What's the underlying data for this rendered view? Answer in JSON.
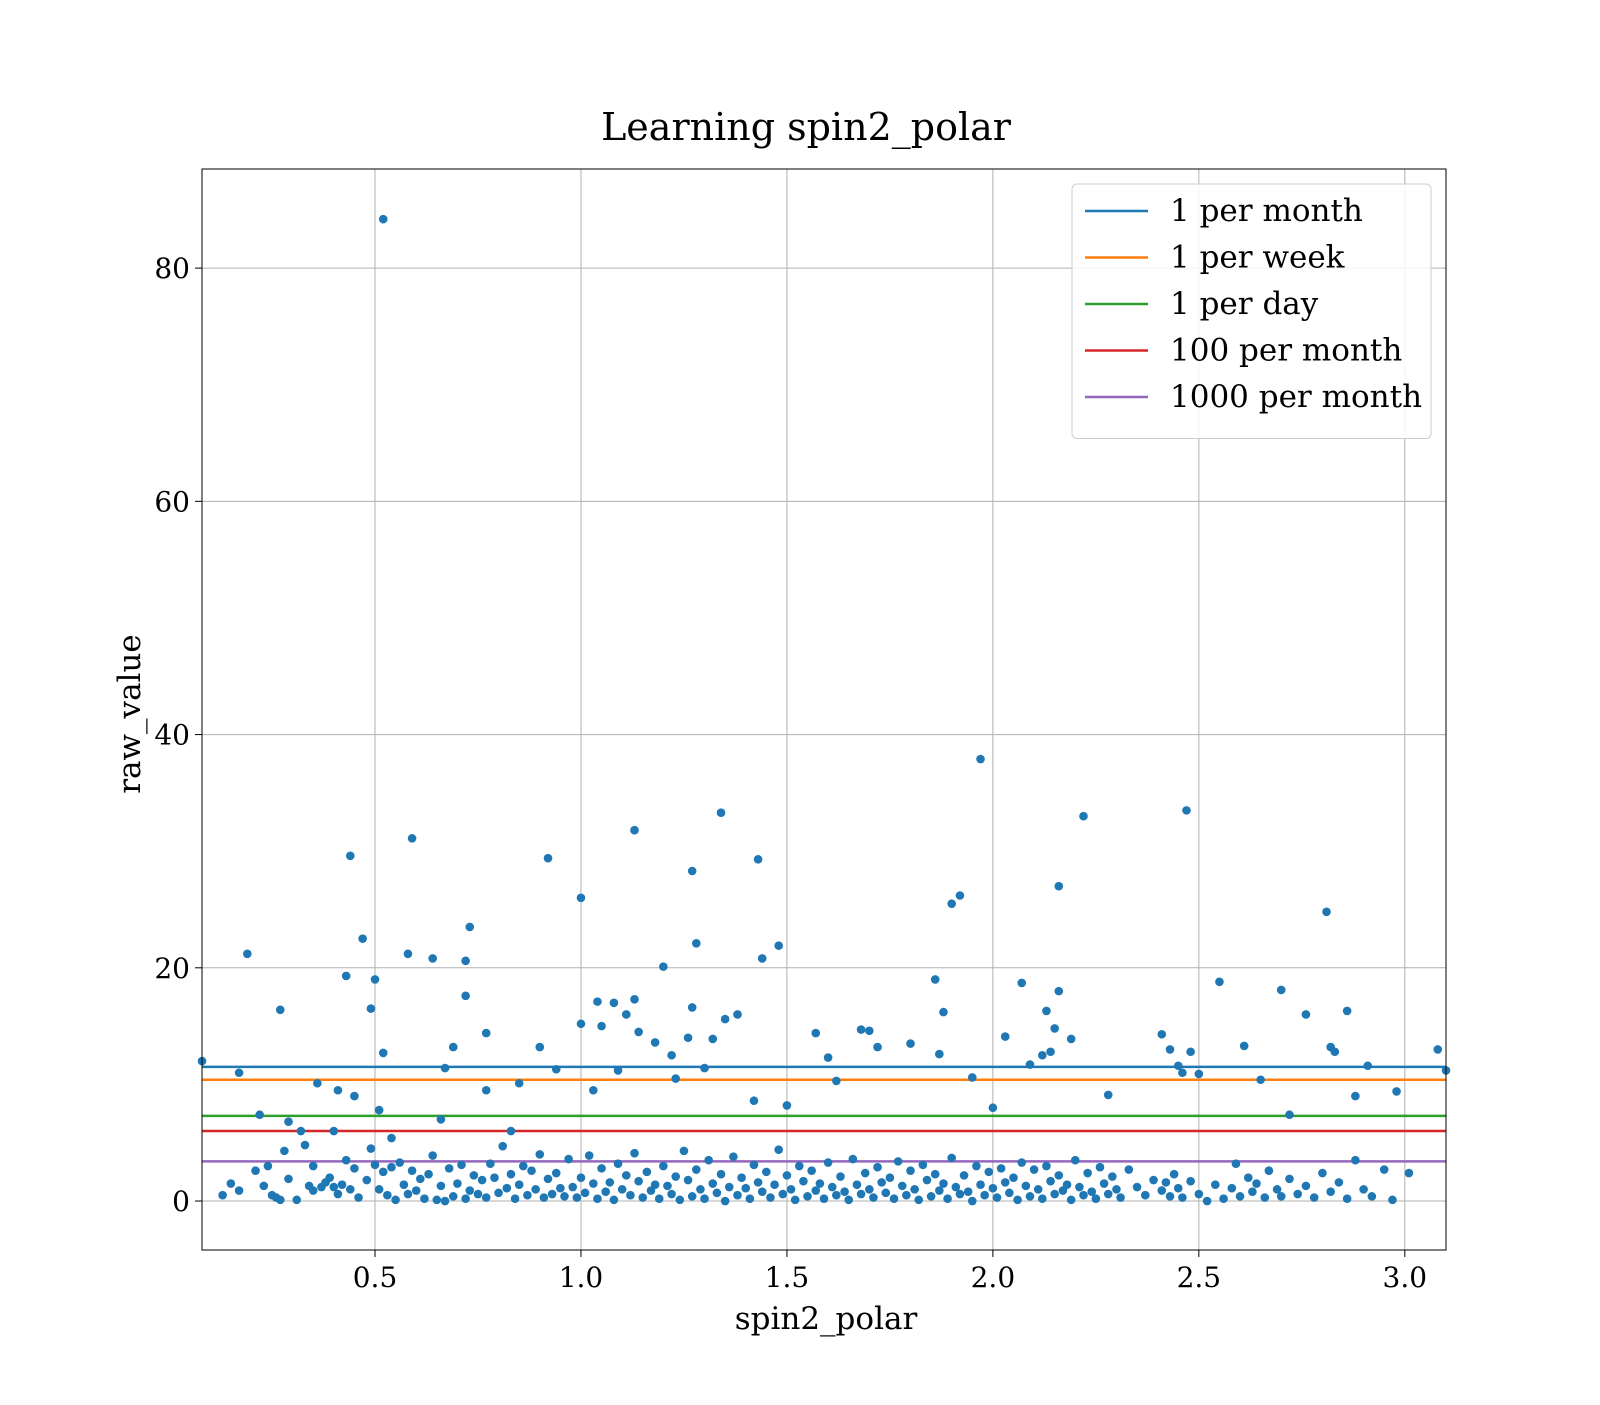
{
  "chart_data": {
    "type": "scatter",
    "title": "Learning spin2_polar",
    "xlabel": "spin2_polar",
    "ylabel": "raw_value",
    "xlim": [
      0.08,
      3.1
    ],
    "ylim": [
      -4.2,
      88.5
    ],
    "xticks": [
      0.5,
      1.0,
      1.5,
      2.0,
      2.5,
      3.0
    ],
    "xtick_labels": [
      "0.5",
      "1.0",
      "1.5",
      "2.0",
      "2.5",
      "3.0"
    ],
    "yticks": [
      0,
      20,
      40,
      60,
      80
    ],
    "ytick_labels": [
      "0",
      "20",
      "40",
      "60",
      "80"
    ],
    "grid": true,
    "legend_position": "top-right",
    "point_color": "#1f77b4",
    "reference_lines": [
      {
        "name": "1 per month",
        "y": 11.5,
        "color": "#1f77b4"
      },
      {
        "name": "1 per week",
        "y": 10.4,
        "color": "#ff7f0e"
      },
      {
        "name": "1 per day",
        "y": 7.3,
        "color": "#2ca02c"
      },
      {
        "name": "100 per month",
        "y": 6.0,
        "color": "#d62728"
      },
      {
        "name": "1000 per month",
        "y": 3.4,
        "color": "#9467bd"
      }
    ],
    "points": [
      [
        0.08,
        12.0
      ],
      [
        0.15,
        1.5
      ],
      [
        0.17,
        11.0
      ],
      [
        0.19,
        21.2
      ],
      [
        0.22,
        7.4
      ],
      [
        0.24,
        3.0
      ],
      [
        0.27,
        16.4
      ],
      [
        0.28,
        4.3
      ],
      [
        0.29,
        6.8
      ],
      [
        0.32,
        6.0
      ],
      [
        0.36,
        10.1
      ],
      [
        0.4,
        6.0
      ],
      [
        0.41,
        9.5
      ],
      [
        0.43,
        19.3
      ],
      [
        0.44,
        29.6
      ],
      [
        0.45,
        9.0
      ],
      [
        0.47,
        22.5
      ],
      [
        0.49,
        4.5
      ],
      [
        0.49,
        16.5
      ],
      [
        0.5,
        19.0
      ],
      [
        0.51,
        7.8
      ],
      [
        0.52,
        12.7
      ],
      [
        0.52,
        84.2
      ],
      [
        0.54,
        5.4
      ],
      [
        0.58,
        21.2
      ],
      [
        0.59,
        31.1
      ],
      [
        0.64,
        20.8
      ],
      [
        0.66,
        7.0
      ],
      [
        0.67,
        11.4
      ],
      [
        0.69,
        13.2
      ],
      [
        0.72,
        20.6
      ],
      [
        0.72,
        17.6
      ],
      [
        0.73,
        23.5
      ],
      [
        0.77,
        14.4
      ],
      [
        0.77,
        9.5
      ],
      [
        0.83,
        6.0
      ],
      [
        0.85,
        10.1
      ],
      [
        0.9,
        13.2
      ],
      [
        0.92,
        29.4
      ],
      [
        0.94,
        11.3
      ],
      [
        1.0,
        26.0
      ],
      [
        1.0,
        15.2
      ],
      [
        1.03,
        9.5
      ],
      [
        1.04,
        17.1
      ],
      [
        1.05,
        15.0
      ],
      [
        1.08,
        17.0
      ],
      [
        1.09,
        11.2
      ],
      [
        1.11,
        16.0
      ],
      [
        1.13,
        31.8
      ],
      [
        1.13,
        17.3
      ],
      [
        1.14,
        14.5
      ],
      [
        1.18,
        13.6
      ],
      [
        1.2,
        20.1
      ],
      [
        1.22,
        12.5
      ],
      [
        1.23,
        10.5
      ],
      [
        1.26,
        14.0
      ],
      [
        1.27,
        16.6
      ],
      [
        1.27,
        28.3
      ],
      [
        1.28,
        22.1
      ],
      [
        1.3,
        11.4
      ],
      [
        1.32,
        13.9
      ],
      [
        1.34,
        33.3
      ],
      [
        1.35,
        15.6
      ],
      [
        1.38,
        16.0
      ],
      [
        1.42,
        8.6
      ],
      [
        1.43,
        29.3
      ],
      [
        1.44,
        20.8
      ],
      [
        1.48,
        21.9
      ],
      [
        1.5,
        8.2
      ],
      [
        1.57,
        14.4
      ],
      [
        1.6,
        12.3
      ],
      [
        1.62,
        10.3
      ],
      [
        1.68,
        14.7
      ],
      [
        1.7,
        14.6
      ],
      [
        1.72,
        13.2
      ],
      [
        1.8,
        13.5
      ],
      [
        1.86,
        19.0
      ],
      [
        1.87,
        12.6
      ],
      [
        1.88,
        16.2
      ],
      [
        1.9,
        25.5
      ],
      [
        1.92,
        26.2
      ],
      [
        1.95,
        10.6
      ],
      [
        1.97,
        37.9
      ],
      [
        2.0,
        8.0
      ],
      [
        2.03,
        14.1
      ],
      [
        2.07,
        18.7
      ],
      [
        2.09,
        11.7
      ],
      [
        2.12,
        12.5
      ],
      [
        2.13,
        16.3
      ],
      [
        2.14,
        12.8
      ],
      [
        2.15,
        14.8
      ],
      [
        2.16,
        27.0
      ],
      [
        2.16,
        18.0
      ],
      [
        2.19,
        13.9
      ],
      [
        2.22,
        33.0
      ],
      [
        2.28,
        9.1
      ],
      [
        2.41,
        14.3
      ],
      [
        2.43,
        13.0
      ],
      [
        2.45,
        11.6
      ],
      [
        2.46,
        11.0
      ],
      [
        2.47,
        33.5
      ],
      [
        2.48,
        12.8
      ],
      [
        2.5,
        10.9
      ],
      [
        2.55,
        18.8
      ],
      [
        2.61,
        13.3
      ],
      [
        2.65,
        10.4
      ],
      [
        2.7,
        18.1
      ],
      [
        2.72,
        7.4
      ],
      [
        2.76,
        16.0
      ],
      [
        2.81,
        24.8
      ],
      [
        2.82,
        13.2
      ],
      [
        2.83,
        12.8
      ],
      [
        2.86,
        16.3
      ],
      [
        2.88,
        9.0
      ],
      [
        2.91,
        11.6
      ],
      [
        2.98,
        9.4
      ],
      [
        3.08,
        13.0
      ],
      [
        3.1,
        11.2
      ],
      [
        0.13,
        0.5
      ],
      [
        0.17,
        0.9
      ],
      [
        0.21,
        2.6
      ],
      [
        0.23,
        1.3
      ],
      [
        0.25,
        0.5
      ],
      [
        0.26,
        0.3
      ],
      [
        0.27,
        0.1
      ],
      [
        0.29,
        1.9
      ],
      [
        0.31,
        0.1
      ],
      [
        0.33,
        4.8
      ],
      [
        0.34,
        1.3
      ],
      [
        0.35,
        3.0
      ],
      [
        0.35,
        0.9
      ],
      [
        0.37,
        1.2
      ],
      [
        0.38,
        1.6
      ],
      [
        0.39,
        2.0
      ],
      [
        0.4,
        1.2
      ],
      [
        0.41,
        0.6
      ],
      [
        0.42,
        1.4
      ],
      [
        0.43,
        3.5
      ],
      [
        0.44,
        1.0
      ],
      [
        0.45,
        2.8
      ],
      [
        0.46,
        0.3
      ],
      [
        0.48,
        1.8
      ],
      [
        0.5,
        3.1
      ],
      [
        0.51,
        1.0
      ],
      [
        0.52,
        2.5
      ],
      [
        0.53,
        0.5
      ],
      [
        0.54,
        2.9
      ],
      [
        0.55,
        0.1
      ],
      [
        0.56,
        3.3
      ],
      [
        0.57,
        1.4
      ],
      [
        0.58,
        0.6
      ],
      [
        0.59,
        2.6
      ],
      [
        0.6,
        0.9
      ],
      [
        0.61,
        1.9
      ],
      [
        0.62,
        0.2
      ],
      [
        0.63,
        2.3
      ],
      [
        0.64,
        3.9
      ],
      [
        0.65,
        0.1
      ],
      [
        0.66,
        1.3
      ],
      [
        0.67,
        0.0
      ],
      [
        0.68,
        2.8
      ],
      [
        0.69,
        0.4
      ],
      [
        0.7,
        1.5
      ],
      [
        0.71,
        3.1
      ],
      [
        0.72,
        0.2
      ],
      [
        0.73,
        0.9
      ],
      [
        0.74,
        2.2
      ],
      [
        0.75,
        0.6
      ],
      [
        0.76,
        1.8
      ],
      [
        0.77,
        0.3
      ],
      [
        0.78,
        3.2
      ],
      [
        0.79,
        2.0
      ],
      [
        0.8,
        0.7
      ],
      [
        0.81,
        4.7
      ],
      [
        0.82,
        1.1
      ],
      [
        0.83,
        2.3
      ],
      [
        0.84,
        0.2
      ],
      [
        0.85,
        1.4
      ],
      [
        0.86,
        3.0
      ],
      [
        0.87,
        0.5
      ],
      [
        0.88,
        2.6
      ],
      [
        0.89,
        1.0
      ],
      [
        0.9,
        4.0
      ],
      [
        0.91,
        0.3
      ],
      [
        0.92,
        1.9
      ],
      [
        0.93,
        0.6
      ],
      [
        0.94,
        2.4
      ],
      [
        0.95,
        1.1
      ],
      [
        0.96,
        0.4
      ],
      [
        0.97,
        3.6
      ],
      [
        0.98,
        1.2
      ],
      [
        0.99,
        0.3
      ],
      [
        1.0,
        2.0
      ],
      [
        1.01,
        0.7
      ],
      [
        1.02,
        3.9
      ],
      [
        1.03,
        1.5
      ],
      [
        1.04,
        0.2
      ],
      [
        1.05,
        2.8
      ],
      [
        1.06,
        0.8
      ],
      [
        1.07,
        1.6
      ],
      [
        1.08,
        0.1
      ],
      [
        1.09,
        3.2
      ],
      [
        1.1,
        1.0
      ],
      [
        1.11,
        2.2
      ],
      [
        1.12,
        0.5
      ],
      [
        1.13,
        4.1
      ],
      [
        1.14,
        1.7
      ],
      [
        1.15,
        0.3
      ],
      [
        1.16,
        2.5
      ],
      [
        1.17,
        0.9
      ],
      [
        1.18,
        1.4
      ],
      [
        1.19,
        0.2
      ],
      [
        1.2,
        3.0
      ],
      [
        1.21,
        1.3
      ],
      [
        1.22,
        0.6
      ],
      [
        1.23,
        2.1
      ],
      [
        1.24,
        0.1
      ],
      [
        1.25,
        4.3
      ],
      [
        1.26,
        1.8
      ],
      [
        1.27,
        0.4
      ],
      [
        1.28,
        2.7
      ],
      [
        1.29,
        1.0
      ],
      [
        1.3,
        0.2
      ],
      [
        1.31,
        3.5
      ],
      [
        1.32,
        1.5
      ],
      [
        1.33,
        0.7
      ],
      [
        1.34,
        2.3
      ],
      [
        1.35,
        0.0
      ],
      [
        1.36,
        1.2
      ],
      [
        1.37,
        3.8
      ],
      [
        1.38,
        0.5
      ],
      [
        1.39,
        2.0
      ],
      [
        1.4,
        1.1
      ],
      [
        1.41,
        0.2
      ],
      [
        1.42,
        3.1
      ],
      [
        1.43,
        1.6
      ],
      [
        1.44,
        0.8
      ],
      [
        1.45,
        2.5
      ],
      [
        1.46,
        0.3
      ],
      [
        1.47,
        1.4
      ],
      [
        1.48,
        4.4
      ],
      [
        1.49,
        0.6
      ],
      [
        1.5,
        2.2
      ],
      [
        1.51,
        1.0
      ],
      [
        1.52,
        0.1
      ],
      [
        1.53,
        3.0
      ],
      [
        1.54,
        1.7
      ],
      [
        1.55,
        0.4
      ],
      [
        1.56,
        2.6
      ],
      [
        1.57,
        0.9
      ],
      [
        1.58,
        1.5
      ],
      [
        1.59,
        0.2
      ],
      [
        1.6,
        3.3
      ],
      [
        1.61,
        1.2
      ],
      [
        1.62,
        0.5
      ],
      [
        1.63,
        2.1
      ],
      [
        1.64,
        0.8
      ],
      [
        1.65,
        0.1
      ],
      [
        1.66,
        3.6
      ],
      [
        1.67,
        1.4
      ],
      [
        1.68,
        0.6
      ],
      [
        1.69,
        2.4
      ],
      [
        1.7,
        1.0
      ],
      [
        1.71,
        0.3
      ],
      [
        1.72,
        2.9
      ],
      [
        1.73,
        1.6
      ],
      [
        1.74,
        0.7
      ],
      [
        1.75,
        2.0
      ],
      [
        1.76,
        0.2
      ],
      [
        1.77,
        3.4
      ],
      [
        1.78,
        1.3
      ],
      [
        1.79,
        0.5
      ],
      [
        1.8,
        2.6
      ],
      [
        1.81,
        1.0
      ],
      [
        1.82,
        0.1
      ],
      [
        1.83,
        3.1
      ],
      [
        1.84,
        1.8
      ],
      [
        1.85,
        0.4
      ],
      [
        1.86,
        2.3
      ],
      [
        1.87,
        0.9
      ],
      [
        1.88,
        1.5
      ],
      [
        1.89,
        0.2
      ],
      [
        1.9,
        3.7
      ],
      [
        1.91,
        1.2
      ],
      [
        1.92,
        0.6
      ],
      [
        1.93,
        2.2
      ],
      [
        1.94,
        0.8
      ],
      [
        1.95,
        0.0
      ],
      [
        1.96,
        3.0
      ],
      [
        1.97,
        1.4
      ],
      [
        1.98,
        0.5
      ],
      [
        1.99,
        2.5
      ],
      [
        2.0,
        1.1
      ],
      [
        2.01,
        0.3
      ],
      [
        2.02,
        2.8
      ],
      [
        2.03,
        1.6
      ],
      [
        2.04,
        0.7
      ],
      [
        2.05,
        2.0
      ],
      [
        2.06,
        0.1
      ],
      [
        2.07,
        3.3
      ],
      [
        2.08,
        1.3
      ],
      [
        2.09,
        0.4
      ],
      [
        2.1,
        2.7
      ],
      [
        2.11,
        1.0
      ],
      [
        2.12,
        0.2
      ],
      [
        2.13,
        3.0
      ],
      [
        2.14,
        1.7
      ],
      [
        2.15,
        0.6
      ],
      [
        2.16,
        2.2
      ],
      [
        2.17,
        0.9
      ],
      [
        2.18,
        1.4
      ],
      [
        2.19,
        0.1
      ],
      [
        2.2,
        3.5
      ],
      [
        2.21,
        1.2
      ],
      [
        2.22,
        0.5
      ],
      [
        2.23,
        2.4
      ],
      [
        2.24,
        0.8
      ],
      [
        2.25,
        0.2
      ],
      [
        2.26,
        2.9
      ],
      [
        2.27,
        1.5
      ],
      [
        2.28,
        0.6
      ],
      [
        2.29,
        2.1
      ],
      [
        2.3,
        1.0
      ],
      [
        2.31,
        0.3
      ],
      [
        2.33,
        2.7
      ],
      [
        2.35,
        1.2
      ],
      [
        2.37,
        0.5
      ],
      [
        2.39,
        1.8
      ],
      [
        2.41,
        0.9
      ],
      [
        2.42,
        1.6
      ],
      [
        2.43,
        0.4
      ],
      [
        2.44,
        2.3
      ],
      [
        2.45,
        1.1
      ],
      [
        2.46,
        0.3
      ],
      [
        2.48,
        1.7
      ],
      [
        2.5,
        0.6
      ],
      [
        2.52,
        0.0
      ],
      [
        2.54,
        1.4
      ],
      [
        2.56,
        0.2
      ],
      [
        2.58,
        1.1
      ],
      [
        2.59,
        3.2
      ],
      [
        2.6,
        0.4
      ],
      [
        2.62,
        2.0
      ],
      [
        2.63,
        0.8
      ],
      [
        2.64,
        1.5
      ],
      [
        2.66,
        0.3
      ],
      [
        2.67,
        2.6
      ],
      [
        2.69,
        1.0
      ],
      [
        2.7,
        0.4
      ],
      [
        2.72,
        1.9
      ],
      [
        2.74,
        0.6
      ],
      [
        2.76,
        1.3
      ],
      [
        2.78,
        0.3
      ],
      [
        2.8,
        2.4
      ],
      [
        2.82,
        0.8
      ],
      [
        2.84,
        1.6
      ],
      [
        2.86,
        0.2
      ],
      [
        2.88,
        3.5
      ],
      [
        2.9,
        1.0
      ],
      [
        2.92,
        0.4
      ],
      [
        2.95,
        2.7
      ],
      [
        2.97,
        0.1
      ],
      [
        3.01,
        2.4
      ]
    ]
  }
}
